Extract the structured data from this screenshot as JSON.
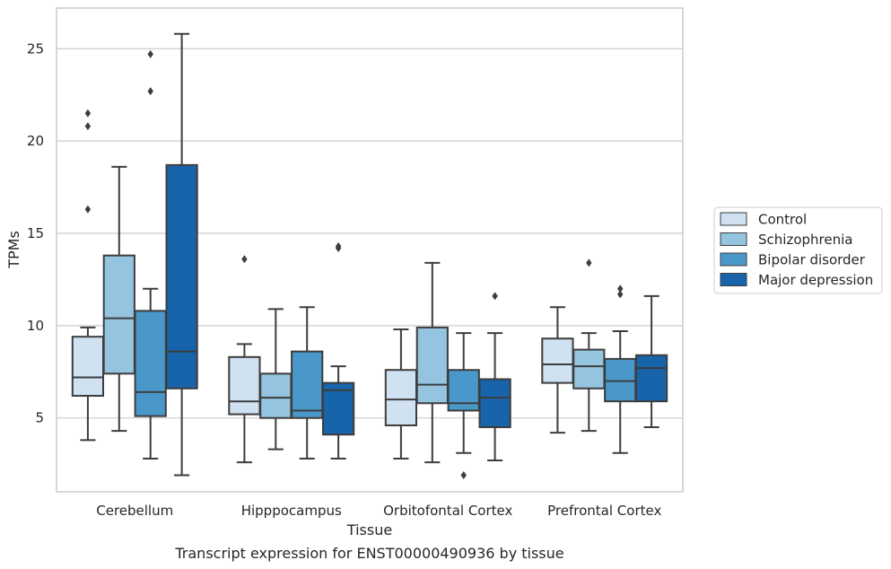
{
  "chart_data": {
    "type": "box",
    "title": "",
    "caption": "Transcript expression for ENST00000490936 by tissue",
    "xlabel": "Tissue",
    "ylabel": "TPMs",
    "ylim": [
      1,
      27.2
    ],
    "yticks": [
      5,
      10,
      15,
      20,
      25
    ],
    "grid": "horizontal",
    "legend_position": "right",
    "categories": [
      "Cerebellum",
      "Hipppocampus",
      "Orbitofontal Cortex",
      "Prefrontal Cortex"
    ],
    "series": [
      {
        "name": "Control",
        "color": "#d0e1f2",
        "boxes": [
          {
            "whislo": 3.8,
            "q1": 6.2,
            "med": 7.2,
            "q3": 9.4,
            "whishi": 9.9,
            "fliers": [
              21.5,
              20.8,
              16.3
            ]
          },
          {
            "whislo": 2.6,
            "q1": 5.2,
            "med": 5.9,
            "q3": 8.3,
            "whishi": 9.0,
            "fliers": [
              13.6
            ]
          },
          {
            "whislo": 2.8,
            "q1": 4.6,
            "med": 6.0,
            "q3": 7.6,
            "whishi": 9.8,
            "fliers": []
          },
          {
            "whislo": 4.2,
            "q1": 6.9,
            "med": 7.9,
            "q3": 9.3,
            "whishi": 11.0,
            "fliers": []
          }
        ]
      },
      {
        "name": "Schizophrenia",
        "color": "#94c4df",
        "boxes": [
          {
            "whislo": 4.3,
            "q1": 7.4,
            "med": 10.4,
            "q3": 13.8,
            "whishi": 18.6,
            "fliers": []
          },
          {
            "whislo": 3.3,
            "q1": 5.0,
            "med": 6.1,
            "q3": 7.4,
            "whishi": 10.9,
            "fliers": []
          },
          {
            "whislo": 2.6,
            "q1": 5.8,
            "med": 6.8,
            "q3": 9.9,
            "whishi": 13.4,
            "fliers": []
          },
          {
            "whislo": 4.3,
            "q1": 6.6,
            "med": 7.8,
            "q3": 8.7,
            "whishi": 9.6,
            "fliers": [
              13.4
            ]
          }
        ]
      },
      {
        "name": "Bipolar disorder",
        "color": "#4a98c9",
        "boxes": [
          {
            "whislo": 2.8,
            "q1": 5.1,
            "med": 6.4,
            "q3": 10.8,
            "whishi": 12.0,
            "fliers": [
              24.7,
              22.7
            ]
          },
          {
            "whislo": 2.8,
            "q1": 5.0,
            "med": 5.4,
            "q3": 8.6,
            "whishi": 11.0,
            "fliers": []
          },
          {
            "whislo": 3.1,
            "q1": 5.4,
            "med": 5.8,
            "q3": 7.6,
            "whishi": 9.6,
            "fliers": [
              1.9
            ]
          },
          {
            "whislo": 3.1,
            "q1": 5.9,
            "med": 7.0,
            "q3": 8.2,
            "whishi": 9.7,
            "fliers": [
              12.0,
              11.7
            ]
          }
        ]
      },
      {
        "name": "Major depression",
        "color": "#1764ab",
        "boxes": [
          {
            "whislo": 1.9,
            "q1": 6.6,
            "med": 8.6,
            "q3": 18.7,
            "whishi": 25.8,
            "fliers": []
          },
          {
            "whislo": 2.8,
            "q1": 4.1,
            "med": 6.5,
            "q3": 6.9,
            "whishi": 7.8,
            "fliers": [
              14.3,
              14.2
            ]
          },
          {
            "whislo": 2.7,
            "q1": 4.5,
            "med": 6.1,
            "q3": 7.1,
            "whishi": 9.6,
            "fliers": [
              11.6
            ]
          },
          {
            "whislo": 4.5,
            "q1": 5.9,
            "med": 7.7,
            "q3": 8.4,
            "whishi": 11.6,
            "fliers": []
          }
        ]
      }
    ]
  }
}
